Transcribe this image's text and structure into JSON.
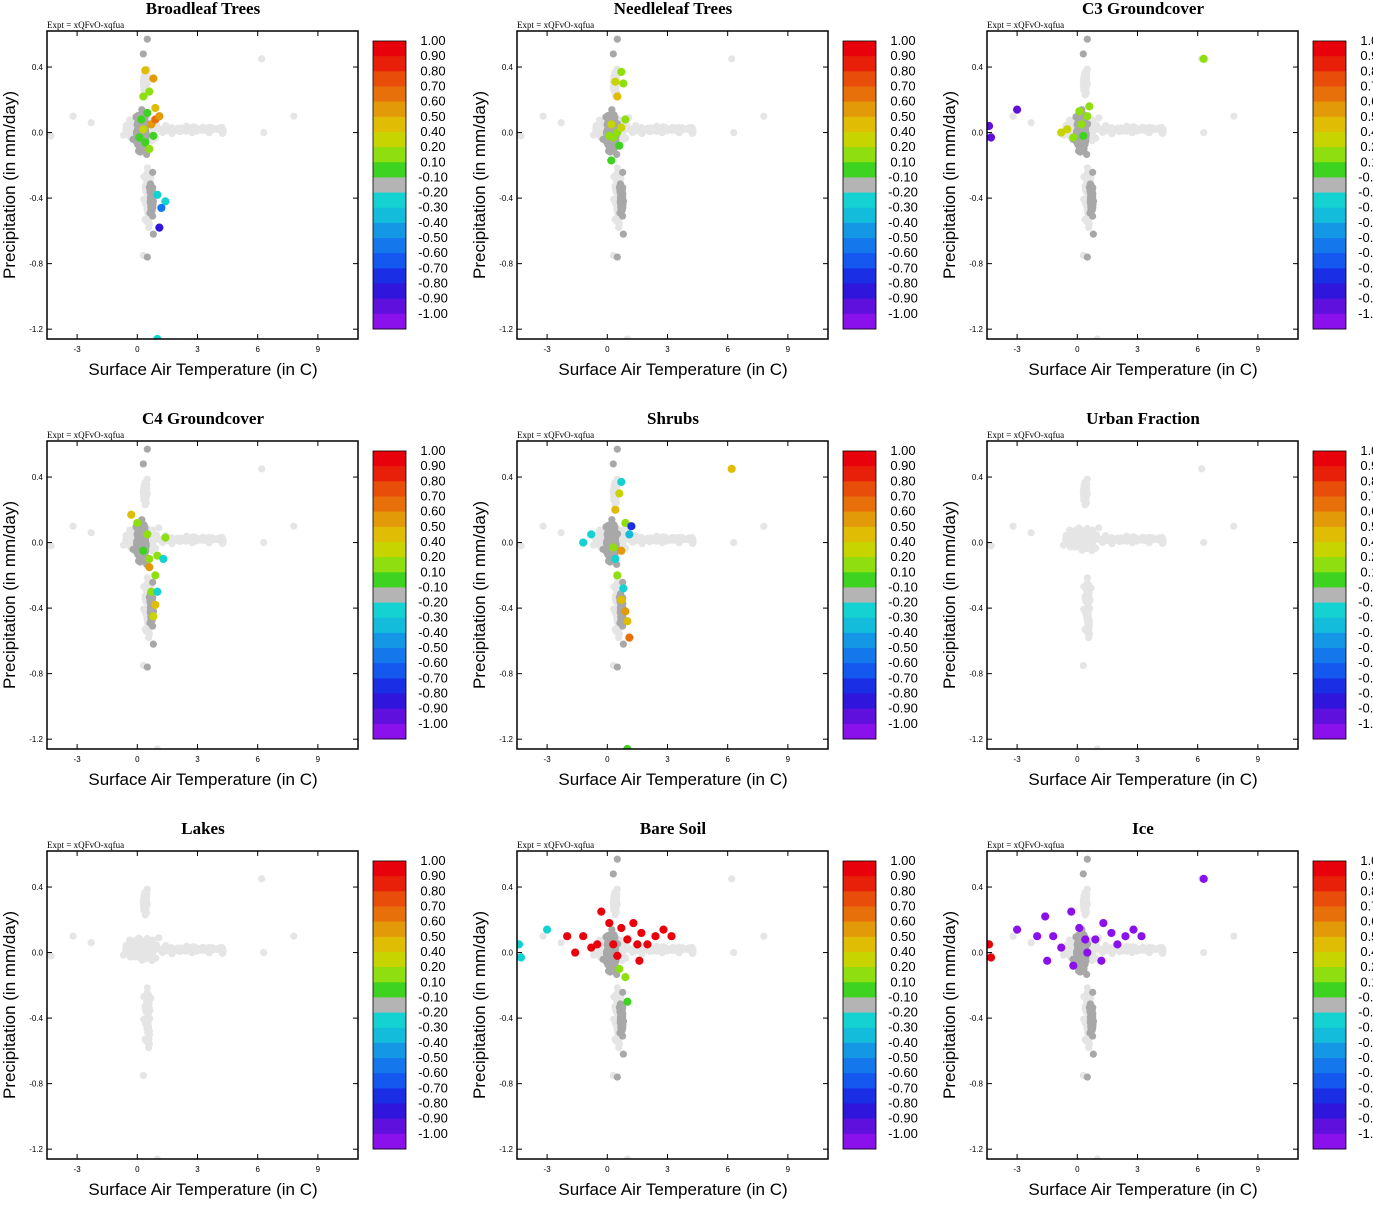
{
  "figure": {
    "expt_label": "Expt = xQFvO-xqfua",
    "xlabel": "Surface Air Temperature (in C)",
    "ylabel": "Precipitation (in mm/day)",
    "x_ticks": [
      "-3",
      "0",
      "3",
      "6",
      "9"
    ],
    "y_ticks": [
      "0.4",
      "0.0",
      "-0.4",
      "-0.8",
      "-1.2"
    ]
  },
  "colorbar": {
    "labels": [
      "1.00",
      "0.90",
      "0.80",
      "0.70",
      "0.60",
      "0.50",
      "0.40",
      "0.20",
      "0.10",
      "-0.10",
      "-0.20",
      "-0.30",
      "-0.40",
      "-0.50",
      "-0.60",
      "-0.70",
      "-0.80",
      "-0.90",
      "-1.00"
    ],
    "colors": [
      "#e8000b",
      "#e8200a",
      "#e84d0a",
      "#e8700a",
      "#e39a08",
      "#e0bc05",
      "#c8d400",
      "#8fdf10",
      "#3ed321",
      "#b4b4b4",
      "#14d2d2",
      "#14bcdc",
      "#1498e6",
      "#1478ec",
      "#1458f0",
      "#1a2ee6",
      "#3016dc",
      "#6010dc",
      "#8a10ec"
    ]
  },
  "colors": {
    "background_points": "#e5e5e5",
    "zero_points": "#a8a8a8"
  },
  "chart_data": [
    {
      "type": "scatter",
      "title": "Broadleaf Trees",
      "xlim": [
        -4.5,
        11
      ],
      "ylim": [
        -1.26,
        0.62
      ],
      "points": [
        [
          0.6,
          0.25,
          0.3
        ],
        [
          0.4,
          0.38,
          0.45
        ],
        [
          0.8,
          0.33,
          0.6
        ],
        [
          0.3,
          0.22,
          0.2
        ],
        [
          0.5,
          0.12,
          0.15
        ],
        [
          0.9,
          0.15,
          0.5
        ],
        [
          0.7,
          0.05,
          0.55
        ],
        [
          0.2,
          0.08,
          0.1
        ],
        [
          0.1,
          -0.03,
          0.12
        ],
        [
          0.4,
          -0.06,
          0.15
        ],
        [
          0.9,
          0.08,
          0.7
        ],
        [
          0.6,
          -0.1,
          0.2
        ],
        [
          1.1,
          0.1,
          0.6
        ],
        [
          1.0,
          -0.38,
          -0.2
        ],
        [
          1.4,
          -0.42,
          -0.2
        ],
        [
          1.2,
          -0.46,
          -0.5
        ],
        [
          1.1,
          -0.58,
          -0.8
        ],
        [
          1.0,
          -1.26,
          -0.2
        ],
        [
          0.3,
          0.02,
          0.35
        ],
        [
          0.8,
          -0.02,
          0.15
        ]
      ]
    },
    {
      "type": "scatter",
      "title": "Needleleaf Trees",
      "xlim": [
        -4.5,
        11
      ],
      "ylim": [
        -1.26,
        0.62
      ],
      "points": [
        [
          0.7,
          0.37,
          0.2
        ],
        [
          0.4,
          0.31,
          0.4
        ],
        [
          0.8,
          0.3,
          0.3
        ],
        [
          0.5,
          0.22,
          0.5
        ],
        [
          0.2,
          0.05,
          0.4
        ],
        [
          0.5,
          0.0,
          0.3
        ],
        [
          0.3,
          -0.03,
          0.2
        ],
        [
          0.7,
          0.03,
          0.4
        ],
        [
          0.9,
          0.08,
          0.25
        ],
        [
          0.1,
          -0.02,
          0.2
        ],
        [
          0.6,
          -0.08,
          0.15
        ],
        [
          0.2,
          -0.17,
          0.15
        ]
      ]
    },
    {
      "type": "scatter",
      "title": "C3 Groundcover",
      "xlim": [
        -4.5,
        11
      ],
      "ylim": [
        -1.26,
        0.62
      ],
      "points": [
        [
          6.3,
          0.45,
          0.3
        ],
        [
          -4.4,
          0.04,
          -0.9
        ],
        [
          -4.3,
          -0.03,
          -0.9
        ],
        [
          -3.0,
          0.14,
          -0.9
        ],
        [
          0.5,
          0.1,
          0.3
        ],
        [
          0.2,
          0.05,
          0.2
        ],
        [
          -0.5,
          0.02,
          0.4
        ],
        [
          -0.8,
          0.0,
          0.35
        ],
        [
          0.1,
          0.13,
          0.2
        ],
        [
          -0.2,
          -0.03,
          0.2
        ],
        [
          0.3,
          -0.02,
          0.15
        ],
        [
          0.6,
          0.16,
          0.25
        ]
      ]
    },
    {
      "type": "scatter",
      "title": "C4 Groundcover",
      "xlim": [
        -4.5,
        11
      ],
      "ylim": [
        -1.26,
        0.62
      ],
      "points": [
        [
          -0.3,
          0.17,
          0.5
        ],
        [
          0.0,
          0.12,
          0.3
        ],
        [
          0.5,
          0.05,
          0.2
        ],
        [
          0.3,
          -0.05,
          0.15
        ],
        [
          0.6,
          -0.1,
          0.3
        ],
        [
          1.0,
          -0.08,
          0.2
        ],
        [
          1.3,
          -0.1,
          -0.2
        ],
        [
          1.4,
          0.03,
          0.2
        ],
        [
          0.9,
          -0.2,
          0.2
        ],
        [
          0.7,
          -0.3,
          0.3
        ],
        [
          0.9,
          -0.38,
          0.5
        ],
        [
          0.8,
          -0.45,
          0.4
        ],
        [
          1.0,
          -0.3,
          -0.2
        ],
        [
          0.6,
          -0.15,
          0.6
        ]
      ]
    },
    {
      "type": "scatter",
      "title": "Shrubs",
      "xlim": [
        -4.5,
        11
      ],
      "ylim": [
        -1.26,
        0.62
      ],
      "points": [
        [
          6.2,
          0.45,
          0.5
        ],
        [
          0.6,
          0.3,
          0.35
        ],
        [
          0.7,
          0.37,
          -0.2
        ],
        [
          0.4,
          0.2,
          0.5
        ],
        [
          0.9,
          0.12,
          0.3
        ],
        [
          1.2,
          0.1,
          -0.7
        ],
        [
          1.1,
          0.05,
          -0.3
        ],
        [
          -0.8,
          0.05,
          -0.2
        ],
        [
          -1.2,
          0.0,
          -0.2
        ],
        [
          0.3,
          -0.03,
          0.3
        ],
        [
          0.7,
          -0.05,
          0.55
        ],
        [
          0.4,
          -0.1,
          -0.2
        ],
        [
          0.5,
          -0.2,
          0.2
        ],
        [
          0.8,
          -0.28,
          -0.2
        ],
        [
          0.7,
          -0.35,
          0.5
        ],
        [
          0.9,
          -0.42,
          0.6
        ],
        [
          1.0,
          -0.48,
          0.5
        ],
        [
          1.1,
          -0.58,
          0.65
        ],
        [
          1.0,
          -1.26,
          0.15
        ]
      ]
    },
    {
      "type": "scatter",
      "title": "Urban Fraction",
      "xlim": [
        -4.5,
        11
      ],
      "ylim": [
        -1.26,
        0.62
      ],
      "points": []
    },
    {
      "type": "scatter",
      "title": "Lakes",
      "xlim": [
        -4.5,
        11
      ],
      "ylim": [
        -1.26,
        0.62
      ],
      "points": []
    },
    {
      "type": "scatter",
      "title": "Bare Soil",
      "xlim": [
        -4.5,
        11
      ],
      "ylim": [
        -1.26,
        0.62
      ],
      "points": [
        [
          -4.4,
          0.05,
          -0.2
        ],
        [
          -4.3,
          -0.03,
          -0.2
        ],
        [
          -3.0,
          0.14,
          -0.2
        ],
        [
          -2.0,
          0.1,
          1.0
        ],
        [
          -1.6,
          0.0,
          1.0
        ],
        [
          -1.2,
          0.1,
          1.0
        ],
        [
          -0.8,
          0.03,
          1.0
        ],
        [
          -0.3,
          0.25,
          1.0
        ],
        [
          0.1,
          0.18,
          1.0
        ],
        [
          0.3,
          0.05,
          1.0
        ],
        [
          0.7,
          0.15,
          1.0
        ],
        [
          1.0,
          0.08,
          1.0
        ],
        [
          1.3,
          0.18,
          1.0
        ],
        [
          1.7,
          0.12,
          1.0
        ],
        [
          2.0,
          0.05,
          1.0
        ],
        [
          2.4,
          0.1,
          1.0
        ],
        [
          2.8,
          0.14,
          1.0
        ],
        [
          3.2,
          0.1,
          1.0
        ],
        [
          0.5,
          -0.02,
          1.0
        ],
        [
          1.6,
          -0.05,
          1.0
        ],
        [
          0.9,
          -0.15,
          0.2
        ],
        [
          1.0,
          -0.3,
          0.15
        ],
        [
          0.6,
          -0.1,
          0.3
        ],
        [
          1.5,
          0.05,
          1.0
        ],
        [
          -0.5,
          0.05,
          1.0
        ]
      ]
    },
    {
      "type": "scatter",
      "title": "Ice",
      "xlim": [
        -4.5,
        11
      ],
      "ylim": [
        -1.26,
        0.62
      ],
      "points": [
        [
          6.3,
          0.45,
          -1.0
        ],
        [
          -4.4,
          0.05,
          1.0
        ],
        [
          -4.3,
          -0.03,
          1.0
        ],
        [
          -3.0,
          0.14,
          -1.0
        ],
        [
          -2.0,
          0.1,
          -1.0
        ],
        [
          -1.6,
          0.22,
          -1.0
        ],
        [
          -1.2,
          0.1,
          -1.0
        ],
        [
          -0.8,
          0.03,
          -1.0
        ],
        [
          -0.3,
          0.25,
          -1.0
        ],
        [
          0.1,
          0.15,
          -1.0
        ],
        [
          0.5,
          0.0,
          -1.0
        ],
        [
          0.9,
          0.08,
          -1.0
        ],
        [
          1.3,
          0.18,
          -1.0
        ],
        [
          1.7,
          0.12,
          -1.0
        ],
        [
          2.0,
          0.05,
          -1.0
        ],
        [
          2.4,
          0.1,
          -1.0
        ],
        [
          2.8,
          0.14,
          -1.0
        ],
        [
          3.2,
          0.1,
          -1.0
        ],
        [
          -1.5,
          -0.05,
          -1.0
        ],
        [
          -0.2,
          -0.08,
          -1.0
        ],
        [
          1.2,
          -0.05,
          -1.0
        ],
        [
          0.4,
          0.08,
          -1.0
        ]
      ]
    }
  ]
}
